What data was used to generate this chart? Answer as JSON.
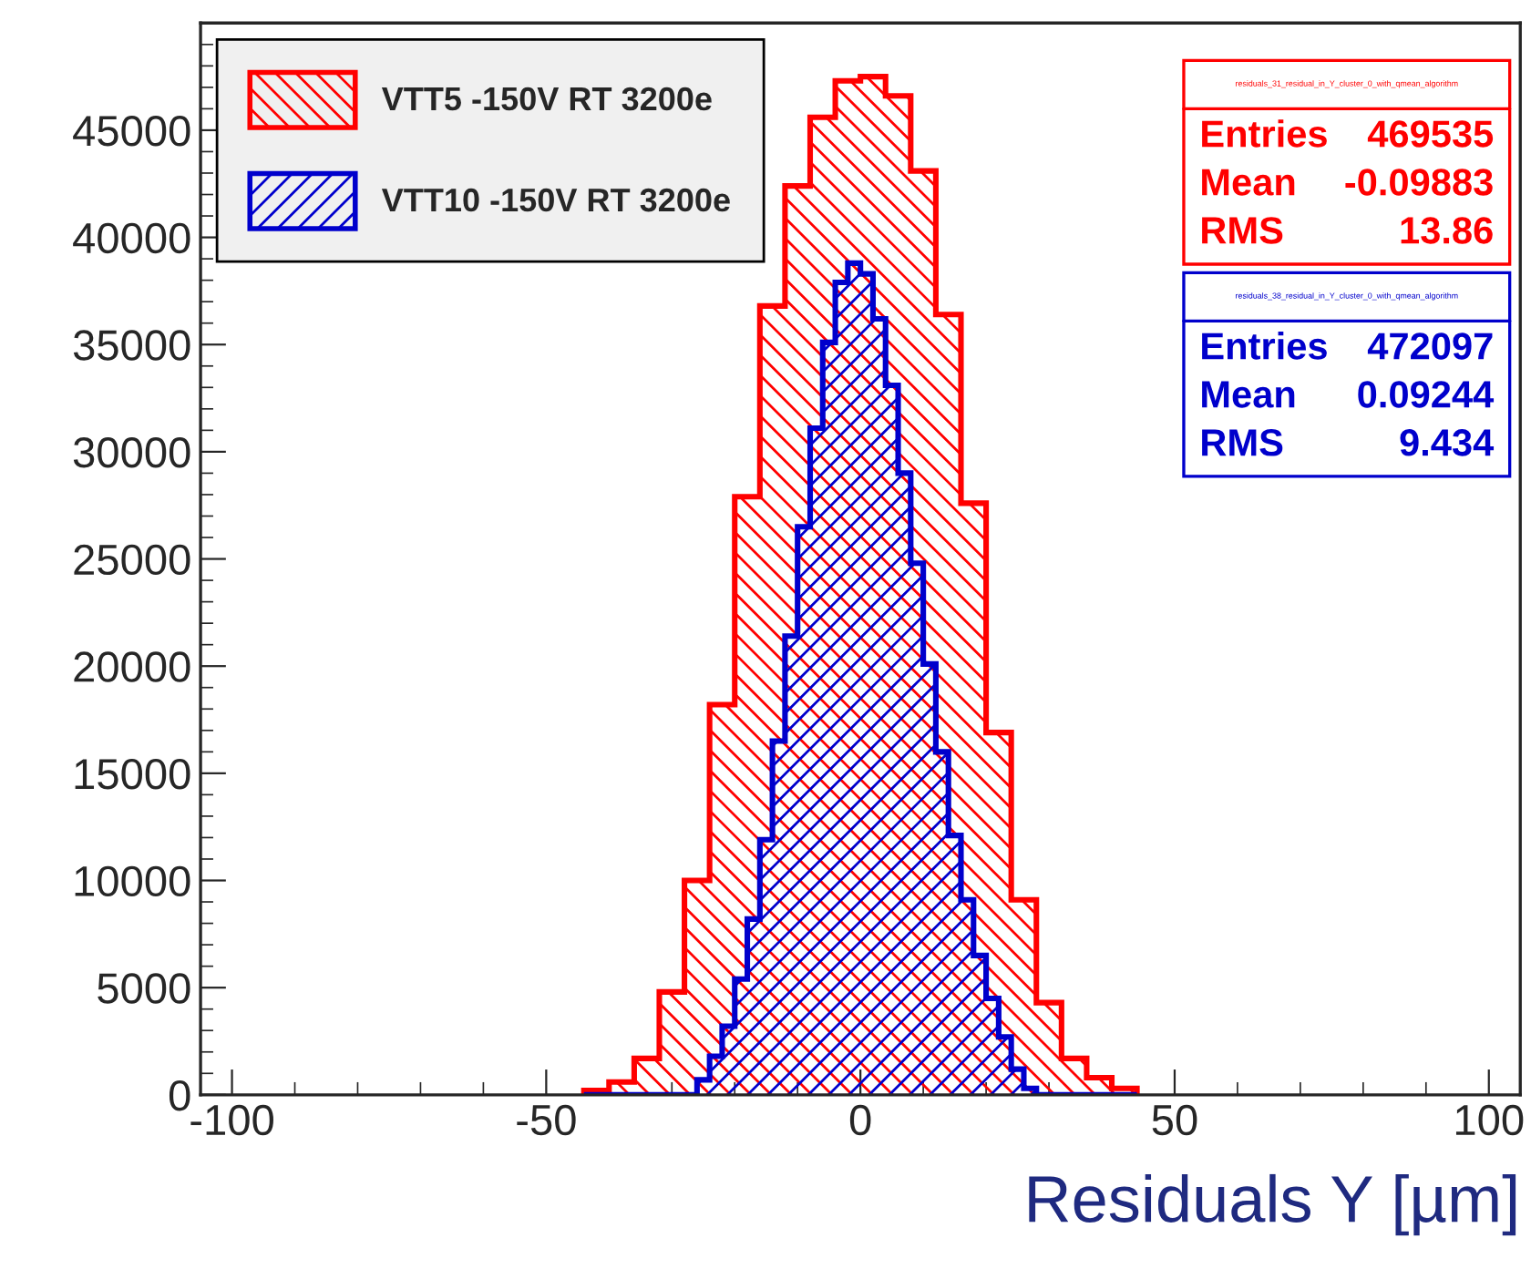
{
  "chart_data": {
    "type": "histogram",
    "xlabel": "Residuals Y [µm]",
    "xlim": [
      -105,
      105
    ],
    "ylim": [
      0,
      50000
    ],
    "xticks": [
      -100,
      -50,
      0,
      50,
      100
    ],
    "yticks": [
      0,
      5000,
      10000,
      15000,
      20000,
      25000,
      30000,
      35000,
      40000,
      45000
    ],
    "legend": "top left",
    "grid": false,
    "bins": [
      -44,
      -42,
      -40,
      -38,
      -36,
      -34,
      -32,
      -30,
      -28,
      -26,
      -24,
      -22,
      -20,
      -18,
      -16,
      -14,
      -12,
      -10,
      -8,
      -6,
      -4,
      -2,
      0,
      2,
      4,
      6,
      8,
      10,
      12,
      14,
      16,
      18,
      20,
      22,
      24,
      26,
      28,
      30,
      32,
      34,
      36,
      38,
      40,
      42,
      44
    ],
    "series": [
      {
        "name": "VTT5 -150V RT 3200e",
        "color": "#ff0000",
        "values": [
          200,
          200,
          600,
          600,
          1700,
          1700,
          4800,
          4800,
          10000,
          10000,
          18200,
          18200,
          27900,
          27900,
          36800,
          36800,
          42400,
          42400,
          45600,
          45600,
          47300,
          47300,
          47500,
          47500,
          46600,
          46600,
          43100,
          43100,
          36400,
          36400,
          27600,
          27600,
          16900,
          16900,
          9100,
          9100,
          4300,
          4300,
          1700,
          1700,
          800,
          800,
          300,
          300
        ]
      },
      {
        "name": "VTT10 -150V RT 3200e",
        "color": "#0000cc",
        "values": [
          0,
          0,
          0,
          0,
          0,
          0,
          0,
          0,
          0,
          700,
          1800,
          3200,
          5400,
          8200,
          11900,
          16500,
          21400,
          26500,
          31100,
          35100,
          37900,
          38800,
          38300,
          36200,
          33100,
          29000,
          24800,
          20100,
          16000,
          12100,
          9100,
          6500,
          4500,
          2700,
          1200,
          300,
          0,
          0,
          0,
          0,
          0,
          0,
          0,
          0
        ]
      }
    ],
    "annotations": [
      "residuals_31_residual_in_Y_cluster_0_with_qmean_algorithm",
      "Entries 469535",
      "Mean -0.09883",
      "RMS 13.86",
      "residuals_38_residual_in_Y_cluster_0_with_qmean_algorithm",
      "Entries 472097",
      "Mean 0.09244",
      "RMS 9.434"
    ]
  }
}
